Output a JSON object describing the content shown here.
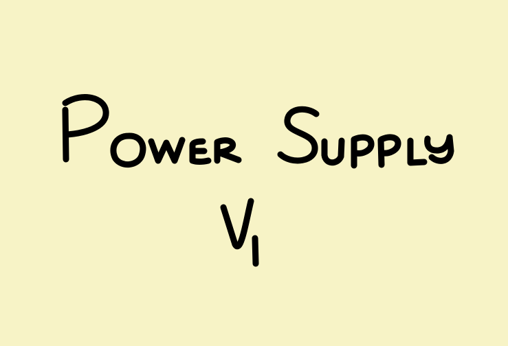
{
  "note": {
    "title": "Power Supply",
    "version": "V1",
    "background_color": "#f7f3c6",
    "ink_color": "#000000"
  }
}
